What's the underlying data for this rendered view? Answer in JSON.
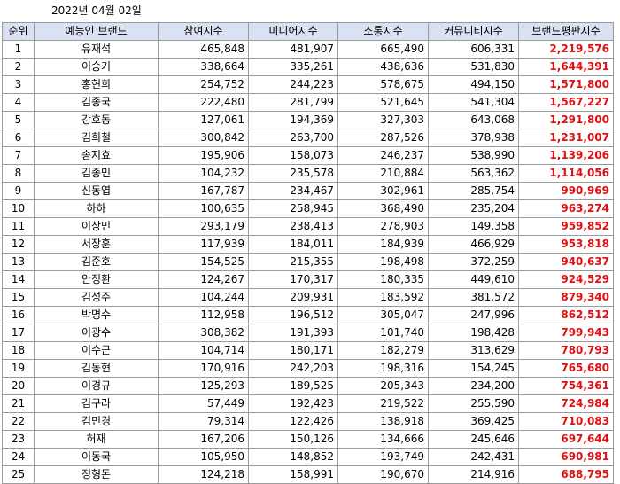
{
  "date": "2022년 04월 02일",
  "columns": [
    "순위",
    "예능인 브랜드",
    "참여지수",
    "미디어지수",
    "소통지수",
    "커뮤니티지수",
    "브랜드평판지수"
  ],
  "colors": {
    "header_bg": "#d9e1f2",
    "brand_index": "#e01010",
    "border": "#9a9a9a"
  },
  "rows": [
    {
      "rank": "1",
      "name": "유재석",
      "participation": "465,848",
      "media": "481,907",
      "communication": "665,490",
      "community": "606,331",
      "brand": "2,219,576"
    },
    {
      "rank": "2",
      "name": "이승기",
      "participation": "338,664",
      "media": "335,261",
      "communication": "438,636",
      "community": "531,830",
      "brand": "1,644,391"
    },
    {
      "rank": "3",
      "name": "홍현희",
      "participation": "254,752",
      "media": "244,223",
      "communication": "578,675",
      "community": "494,150",
      "brand": "1,571,800"
    },
    {
      "rank": "4",
      "name": "김종국",
      "participation": "222,480",
      "media": "281,799",
      "communication": "521,645",
      "community": "541,304",
      "brand": "1,567,227"
    },
    {
      "rank": "5",
      "name": "강호동",
      "participation": "127,061",
      "media": "194,369",
      "communication": "327,303",
      "community": "643,068",
      "brand": "1,291,800"
    },
    {
      "rank": "6",
      "name": "김희철",
      "participation": "300,842",
      "media": "263,700",
      "communication": "287,526",
      "community": "378,938",
      "brand": "1,231,007"
    },
    {
      "rank": "7",
      "name": "송지효",
      "participation": "195,906",
      "media": "158,073",
      "communication": "246,237",
      "community": "538,990",
      "brand": "1,139,206"
    },
    {
      "rank": "8",
      "name": "김종민",
      "participation": "104,232",
      "media": "235,578",
      "communication": "210,884",
      "community": "563,362",
      "brand": "1,114,056"
    },
    {
      "rank": "9",
      "name": "신동엽",
      "participation": "167,787",
      "media": "234,467",
      "communication": "302,961",
      "community": "285,754",
      "brand": "990,969"
    },
    {
      "rank": "10",
      "name": "하하",
      "participation": "100,635",
      "media": "258,945",
      "communication": "368,490",
      "community": "235,204",
      "brand": "963,274"
    },
    {
      "rank": "11",
      "name": "이상민",
      "participation": "293,179",
      "media": "238,413",
      "communication": "278,903",
      "community": "149,358",
      "brand": "959,852"
    },
    {
      "rank": "12",
      "name": "서장훈",
      "participation": "117,939",
      "media": "184,011",
      "communication": "184,939",
      "community": "466,929",
      "brand": "953,818"
    },
    {
      "rank": "13",
      "name": "김준호",
      "participation": "154,525",
      "media": "215,355",
      "communication": "198,498",
      "community": "372,259",
      "brand": "940,637"
    },
    {
      "rank": "14",
      "name": "안정환",
      "participation": "124,267",
      "media": "170,317",
      "communication": "180,335",
      "community": "449,610",
      "brand": "924,529"
    },
    {
      "rank": "15",
      "name": "김성주",
      "participation": "104,244",
      "media": "209,931",
      "communication": "183,592",
      "community": "381,572",
      "brand": "879,340"
    },
    {
      "rank": "16",
      "name": "박명수",
      "participation": "112,958",
      "media": "196,512",
      "communication": "305,047",
      "community": "247,996",
      "brand": "862,512"
    },
    {
      "rank": "17",
      "name": "이광수",
      "participation": "308,382",
      "media": "191,393",
      "communication": "101,740",
      "community": "198,428",
      "brand": "799,943"
    },
    {
      "rank": "18",
      "name": "이수근",
      "participation": "104,714",
      "media": "180,171",
      "communication": "182,279",
      "community": "313,629",
      "brand": "780,793"
    },
    {
      "rank": "19",
      "name": "김동현",
      "participation": "170,916",
      "media": "242,203",
      "communication": "198,316",
      "community": "154,245",
      "brand": "765,680"
    },
    {
      "rank": "20",
      "name": "이경규",
      "participation": "125,293",
      "media": "189,525",
      "communication": "205,343",
      "community": "234,200",
      "brand": "754,361"
    },
    {
      "rank": "21",
      "name": "김구라",
      "participation": "57,449",
      "media": "192,423",
      "communication": "219,522",
      "community": "255,590",
      "brand": "724,984"
    },
    {
      "rank": "22",
      "name": "김민경",
      "participation": "79,314",
      "media": "122,426",
      "communication": "138,918",
      "community": "369,425",
      "brand": "710,083"
    },
    {
      "rank": "23",
      "name": "허재",
      "participation": "167,206",
      "media": "150,126",
      "communication": "134,666",
      "community": "245,646",
      "brand": "697,644"
    },
    {
      "rank": "24",
      "name": "이동국",
      "participation": "105,950",
      "media": "148,852",
      "communication": "193,749",
      "community": "242,431",
      "brand": "690,981"
    },
    {
      "rank": "25",
      "name": "정형돈",
      "participation": "124,218",
      "media": "158,991",
      "communication": "190,670",
      "community": "214,916",
      "brand": "688,795"
    }
  ]
}
